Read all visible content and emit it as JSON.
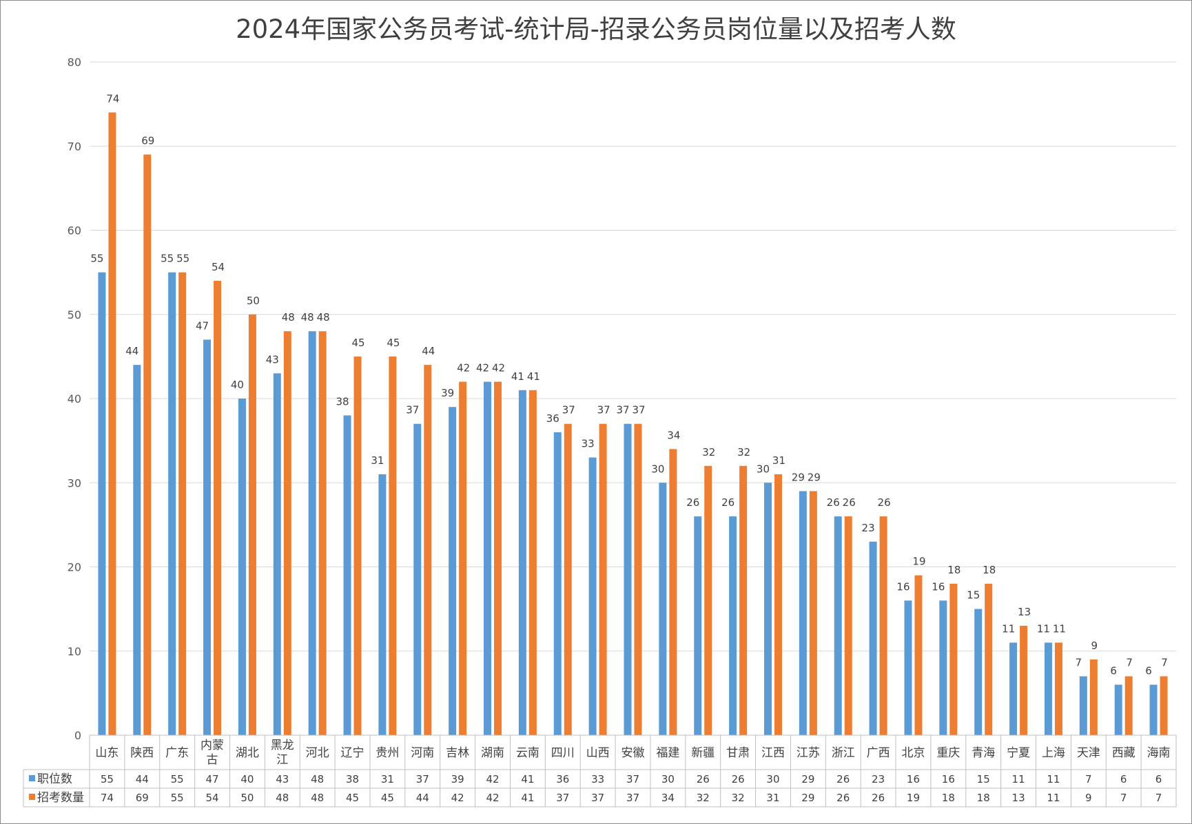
{
  "chart_data": {
    "type": "bar",
    "title": "2024年国家公务员考试-统计局-招录公务员岗位量以及招考人数",
    "ylim": [
      0,
      80
    ],
    "yticks": [
      0,
      10,
      20,
      30,
      40,
      50,
      60,
      70,
      80
    ],
    "grid": true,
    "legend": "data-table",
    "categories": [
      "山东",
      "陕西",
      "广东",
      "内蒙古",
      "湖北",
      "黑龙江",
      "河北",
      "辽宁",
      "贵州",
      "河南",
      "吉林",
      "湖南",
      "云南",
      "四川",
      "山西",
      "安徽",
      "福建",
      "新疆",
      "甘肃",
      "江西",
      "江苏",
      "浙江",
      "广西",
      "北京",
      "重庆",
      "青海",
      "宁夏",
      "上海",
      "天津",
      "西藏",
      "海南"
    ],
    "category_lines": [
      [
        "山东"
      ],
      [
        "陕西"
      ],
      [
        "广东"
      ],
      [
        "内蒙",
        "古"
      ],
      [
        "湖北"
      ],
      [
        "黑龙",
        "江"
      ],
      [
        "河北"
      ],
      [
        "辽宁"
      ],
      [
        "贵州"
      ],
      [
        "河南"
      ],
      [
        "吉林"
      ],
      [
        "湖南"
      ],
      [
        "云南"
      ],
      [
        "四川"
      ],
      [
        "山西"
      ],
      [
        "安徽"
      ],
      [
        "福建"
      ],
      [
        "新疆"
      ],
      [
        "甘肃"
      ],
      [
        "江西"
      ],
      [
        "江苏"
      ],
      [
        "浙江"
      ],
      [
        "广西"
      ],
      [
        "北京"
      ],
      [
        "重庆"
      ],
      [
        "青海"
      ],
      [
        "宁夏"
      ],
      [
        "上海"
      ],
      [
        "天津"
      ],
      [
        "西藏"
      ],
      [
        "海南"
      ]
    ],
    "series": [
      {
        "name": "职位数",
        "color": "#5B9BD5",
        "values": [
          55,
          44,
          55,
          47,
          40,
          43,
          48,
          38,
          31,
          37,
          39,
          42,
          41,
          36,
          33,
          37,
          30,
          26,
          26,
          30,
          29,
          26,
          23,
          16,
          16,
          15,
          11,
          11,
          7,
          6,
          6
        ]
      },
      {
        "name": "招考数量",
        "color": "#ED7D31",
        "values": [
          74,
          69,
          55,
          54,
          50,
          48,
          48,
          45,
          45,
          44,
          42,
          42,
          41,
          37,
          37,
          37,
          34,
          32,
          32,
          31,
          29,
          26,
          26,
          19,
          18,
          18,
          13,
          11,
          9,
          7,
          7
        ]
      }
    ]
  }
}
